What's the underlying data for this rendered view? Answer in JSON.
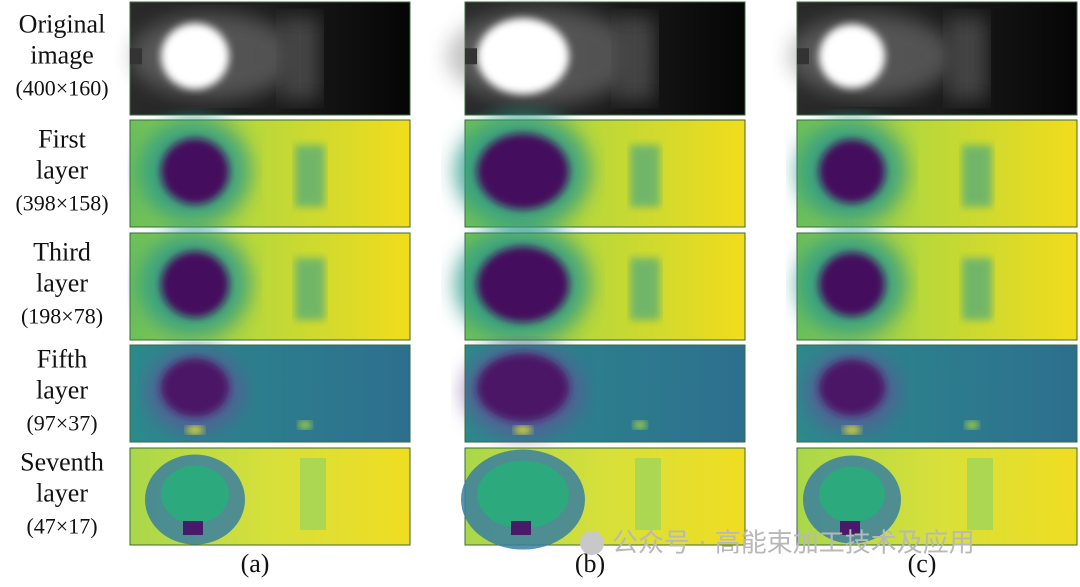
{
  "figure": {
    "rows": [
      {
        "lines": [
          "Original",
          "image"
        ],
        "size": "(400×160)"
      },
      {
        "lines": [
          "First",
          "layer"
        ],
        "size": "(398×158)"
      },
      {
        "lines": [
          "Third",
          "layer"
        ],
        "size": "(198×78)"
      },
      {
        "lines": [
          "Fifth",
          "layer"
        ],
        "size": "(97×37)"
      },
      {
        "lines": [
          "Seventh",
          "layer"
        ],
        "size": "(47×17)"
      }
    ],
    "columns": [
      "(a)",
      "(b)",
      "(c)"
    ],
    "watermark": "公众号 · 高能束加工技术及应用"
  }
}
